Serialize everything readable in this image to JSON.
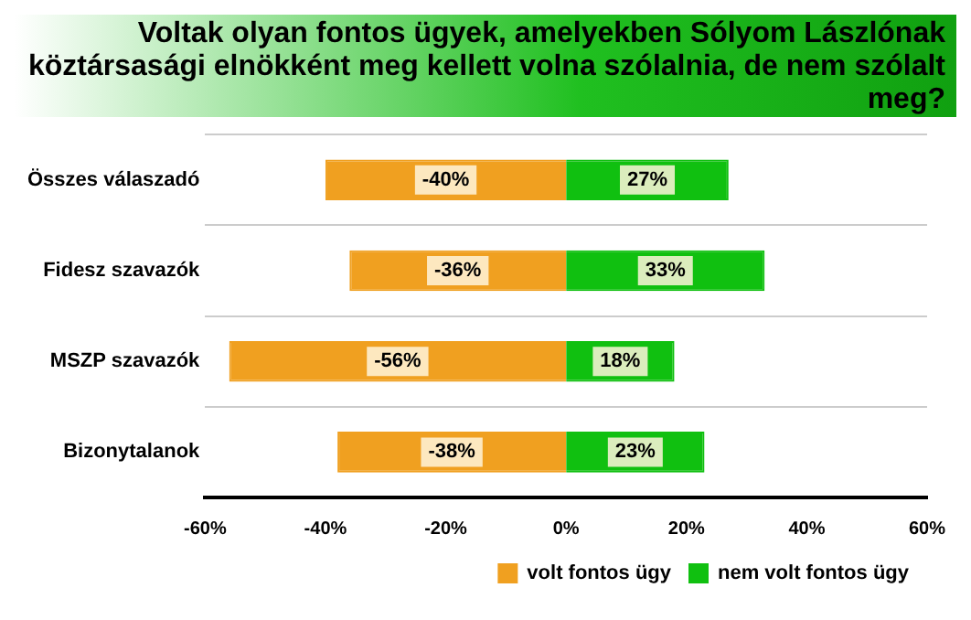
{
  "chart_data": {
    "type": "bar",
    "orientation": "horizontal",
    "stacked": true,
    "title": "Voltak olyan fontos ügyek, amelyekben Sólyom Lászlónak köztársasági elnökként meg kellett volna szólalnia, de nem szólalt meg?",
    "categories": [
      "Összes válaszadó",
      "Fidesz szavazók",
      "MSZP szavazók",
      "Bizonytalanok"
    ],
    "series": [
      {
        "name": "volt fontos ügy",
        "color": "#f0a020",
        "values": [
          -40,
          -36,
          -56,
          -38
        ],
        "value_labels": [
          "-40%",
          "-36%",
          "-56%",
          "-38%"
        ]
      },
      {
        "name": "nem volt fontos ügy",
        "color": "#10c010",
        "values": [
          27,
          33,
          18,
          23
        ],
        "value_labels": [
          "27%",
          "33%",
          "18%",
          "23%"
        ]
      }
    ],
    "xlim": [
      -60,
      60
    ],
    "xticks": [
      {
        "value": -60,
        "label": "-60%"
      },
      {
        "value": -40,
        "label": "-40%"
      },
      {
        "value": -20,
        "label": "-20%"
      },
      {
        "value": 0,
        "label": "0%"
      },
      {
        "value": 20,
        "label": "20%"
      },
      {
        "value": 40,
        "label": "40%"
      },
      {
        "value": 60,
        "label": "60%"
      }
    ],
    "grid": "y",
    "legend": "bottom right"
  }
}
